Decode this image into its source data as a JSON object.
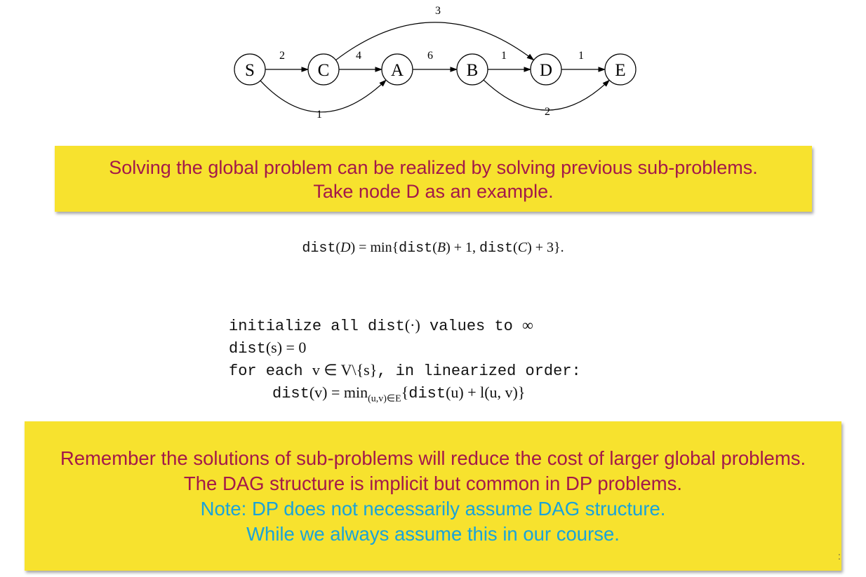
{
  "graph": {
    "nodes": [
      {
        "id": "S",
        "label": "S"
      },
      {
        "id": "C",
        "label": "C"
      },
      {
        "id": "A",
        "label": "A"
      },
      {
        "id": "B",
        "label": "B"
      },
      {
        "id": "D",
        "label": "D"
      },
      {
        "id": "E",
        "label": "E"
      }
    ],
    "edges": [
      {
        "from": "S",
        "to": "C",
        "weight": "2"
      },
      {
        "from": "C",
        "to": "A",
        "weight": "4"
      },
      {
        "from": "A",
        "to": "B",
        "weight": "6"
      },
      {
        "from": "B",
        "to": "D",
        "weight": "1"
      },
      {
        "from": "D",
        "to": "E",
        "weight": "1"
      },
      {
        "from": "C",
        "to": "D",
        "weight": "3"
      },
      {
        "from": "S",
        "to": "A",
        "weight": "1"
      },
      {
        "from": "B",
        "to": "E",
        "weight": "2"
      }
    ]
  },
  "callout1": {
    "line1": "Solving the global problem can be realized by solving previous sub-problems.",
    "line2": "Take node D as an example."
  },
  "formula": {
    "dist_fn": "dist",
    "p1": "(",
    "D": "D",
    "p2": ") = min{",
    "B": "B",
    "p3": ") + 1, ",
    "C": "C",
    "p4": ") + 3}."
  },
  "algorithm": {
    "line1_kw": "initialize all dist",
    "line1_math": "(·)",
    "line1_rest": " values to ",
    "line1_inf": "∞",
    "line2_fn": "dist",
    "line2_math": "(s) = 0",
    "line3_kw": "for each ",
    "line3_math": "v ∈ V\\{s}",
    "line3_rest": ", in linearized order:",
    "line4_fn": "dist",
    "line4_math1": "(v) = min",
    "line4_sub": "(u,v)∈E",
    "line4_brace": "{",
    "line4_math2": "(u) + l(u, v)}"
  },
  "callout2": {
    "line1": "Remember the solutions of sub-problems will reduce the cost of larger global problems.",
    "line2": "The DAG structure is implicit but common in DP problems.",
    "line3": "Note: DP does not necessarily assume DAG structure.",
    "line4": "While we always assume this in our course."
  },
  "colors": {
    "callout_bg": "#f7e22e",
    "text_primary": "#a3194a",
    "text_note": "#1aa3d9"
  }
}
